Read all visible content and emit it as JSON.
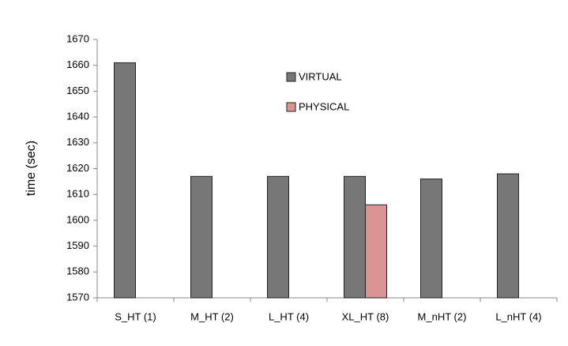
{
  "chart_data": {
    "type": "bar",
    "y_label": "time (sec)",
    "categories": [
      "S_HT (1)",
      "M_HT (2)",
      "L_HT (4)",
      "XL_HT (8)",
      "M_nHT (2)",
      "L_nHT (4)"
    ],
    "series": [
      {
        "name": "VIRTUAL",
        "color": "#777777",
        "values": [
          1661,
          1617,
          1617,
          1617,
          1616,
          1618
        ]
      },
      {
        "name": "PHYSICAL",
        "color": "#d99594",
        "values": [
          null,
          null,
          null,
          1606,
          null,
          null
        ]
      }
    ],
    "ylim": [
      1570,
      1670
    ],
    "yticks": [
      1570,
      1580,
      1590,
      1600,
      1610,
      1620,
      1630,
      1640,
      1650,
      1660,
      1670
    ],
    "grid": false,
    "legend": "top-center"
  }
}
